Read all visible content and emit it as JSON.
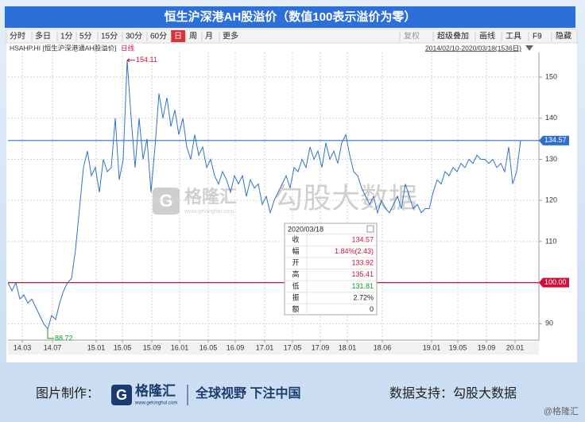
{
  "chart_data": {
    "type": "line",
    "title": "恒生沪深港AH股溢价（数值100表示溢价为零）",
    "toolbar_left": [
      "分时",
      "多日",
      "1分",
      "5分",
      "15分",
      "30分",
      "60分",
      "日",
      "周",
      "月",
      "更多"
    ],
    "toolbar_right": [
      "复权",
      "超级叠加",
      "画线",
      "工具",
      "F9",
      "隐藏"
    ],
    "symbol": "HSAHP.HI [恒生沪深港通AH股溢价]",
    "period": "日线",
    "date_range": "2014/02/10-2020/03/18(1536日)",
    "series": [
      {
        "name": "HSAHP.HI",
        "color": "#2f73c9",
        "values": [
          100,
          98,
          100,
          96,
          97,
          95,
          96,
          94,
          92,
          90,
          88.72,
          92,
          91,
          95,
          98,
          100,
          101,
          108,
          118,
          128,
          132,
          126,
          128,
          122,
          130,
          127,
          128,
          140,
          125,
          130,
          154.11,
          140,
          128,
          140,
          130,
          135,
          122,
          133,
          146,
          140,
          145,
          138,
          142,
          136,
          140,
          133,
          130,
          136,
          131,
          133,
          128,
          130,
          126,
          124,
          127,
          125,
          122,
          126,
          124,
          126,
          121,
          125,
          123,
          124,
          119,
          121,
          117,
          120,
          122,
          124,
          126,
          123,
          128,
          127,
          130,
          128,
          133,
          130,
          132,
          128,
          134,
          130,
          132,
          129,
          134,
          136,
          131,
          127,
          126,
          123,
          121,
          119,
          121,
          117,
          120,
          118,
          117,
          119,
          121,
          118,
          124,
          121,
          118,
          119,
          117,
          118,
          118,
          122,
          125,
          124,
          127,
          126,
          128,
          127,
          129,
          128,
          130,
          129,
          131,
          130,
          130,
          129,
          130,
          128,
          129,
          127,
          133,
          124,
          127,
          134.57
        ]
      }
    ],
    "max_label_index": 30,
    "min_label_index": 10,
    "xlim": [
      0,
      131
    ],
    "xticks": [
      {
        "value": 3.6,
        "label": "14.03"
      },
      {
        "value": 11.2,
        "label": "14.07"
      },
      {
        "value": 22.2,
        "label": "15.01"
      },
      {
        "value": 28.8,
        "label": "15.05"
      },
      {
        "value": 36.2,
        "label": "15.09"
      },
      {
        "value": 43.2,
        "label": "16.01"
      },
      {
        "value": 50.4,
        "label": "16.05"
      },
      {
        "value": 57.2,
        "label": "16.09"
      },
      {
        "value": 64.6,
        "label": "17.01"
      },
      {
        "value": 71.6,
        "label": "17.05"
      },
      {
        "value": 78.6,
        "label": "17.09"
      },
      {
        "value": 85.4,
        "label": "18.01"
      },
      {
        "value": 94.2,
        "label": "18.06"
      },
      {
        "value": 106.6,
        "label": "19.01"
      },
      {
        "value": 113.2,
        "label": "19.05"
      },
      {
        "value": 120.4,
        "label": "19.09"
      },
      {
        "value": 127.6,
        "label": "20.01"
      }
    ],
    "ylim": [
      86,
      156
    ],
    "yticks": [
      90,
      100,
      110,
      120,
      130,
      140,
      150
    ],
    "grid": true,
    "reference_lines": [
      {
        "value": 134.57,
        "color": "#2f6fd0"
      },
      {
        "value": 100,
        "label": "100.00",
        "color": "#d0103a"
      }
    ],
    "tooltip": {
      "date": "2020/03/18",
      "rows": [
        {
          "key": "收",
          "value": "134.57",
          "color": "#d0103a"
        },
        {
          "key": "幅",
          "value": "1.84%(2.43)",
          "color": "#d0103a"
        },
        {
          "key": "开",
          "value": "133.92",
          "color": "#d0103a"
        },
        {
          "key": "高",
          "value": "135.41",
          "color": "#d0103a"
        },
        {
          "key": "低",
          "value": "131.81",
          "color": "#129a2a"
        },
        {
          "key": "振",
          "value": "2.72%",
          "color": "#222222"
        },
        {
          "key": "额",
          "value": "0",
          "color": "#222222"
        }
      ]
    },
    "watermark": {
      "brand": "格隆汇",
      "site": "www.gelonghui.com",
      "source": "勾股大数据"
    },
    "footer": {
      "made_by": "图片制作：",
      "brand": "格隆汇",
      "site": "www.gelonghui.com",
      "slogan": "全球视野 下注中国",
      "data_source": "数据支持：勾股大数据",
      "credit": "@格隆汇"
    }
  }
}
